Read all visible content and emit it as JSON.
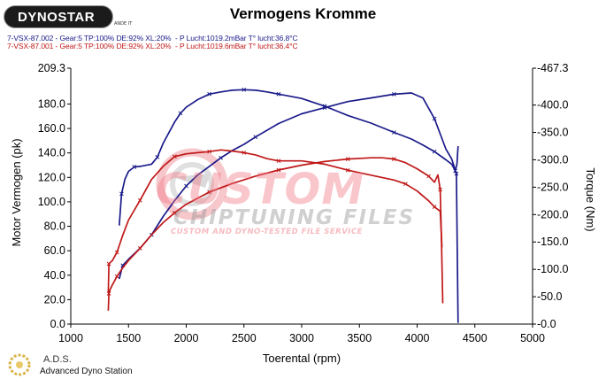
{
  "header": {
    "brand_text": "DYNOSTAR",
    "brand_tag": "ANDE IT",
    "title": "Vermogens Kromme",
    "runs": [
      "7-VSX-87.002 - Gear:5 TP:100% DE:92% XL:20%  - P Lucht:1019.2mBar T° lucht:36.8°C",
      "7-VSX-87.001 - Gear:5 TP:100% DE:92% XL:20%  - P Lucht:1019.6mBar T° lucht:36.4°C"
    ]
  },
  "watermark": {
    "line1": "CUSTOM",
    "line2": "CHIPTUNING FILES",
    "line3": "CUSTOM AND DYNO-TESTED FILE SERVICE"
  },
  "footer": {
    "title": "A.D.S.",
    "subtitle": "Advanced Dyno Station"
  },
  "colors": {
    "run1": "#1a1a8a",
    "run2": "#c01818",
    "axis": "#000000"
  },
  "chart_data": {
    "type": "line",
    "title": "Vermogens Kromme",
    "xlabel": "Toerental (rpm)",
    "ylabel": "Motor Vermogen (pk)",
    "y2label": "Torque (Nm)",
    "xlim": [
      1000,
      5000
    ],
    "ylim": [
      0,
      209.3
    ],
    "y2lim": [
      0,
      467.3
    ],
    "x_ticks": [
      "1000",
      "1500",
      "2000",
      "2500",
      "3000",
      "3500",
      "4000",
      "4500",
      "5000"
    ],
    "y_ticks": [
      "0.0",
      "20.0",
      "40.0",
      "60.0",
      "80.0",
      "100.0",
      "120.0",
      "140.0",
      "160.0",
      "180.0",
      "209.3"
    ],
    "y2_ticks": [
      "-0.0",
      "-50.0",
      "-100.0",
      "-150.0",
      "-200.0",
      "-250.0",
      "-300.0",
      "-350.0",
      "-400.0",
      "-467.3"
    ],
    "grid": false,
    "series": [
      {
        "run": "7-VSX-87.002",
        "quantity": "power",
        "axis": "left",
        "color": "#1a1a8a",
        "x": [
          1420,
          1450,
          1500,
          1600,
          1700,
          1800,
          1900,
          2000,
          2100,
          2200,
          2300,
          2400,
          2500,
          2600,
          2800,
          3000,
          3200,
          3400,
          3600,
          3800,
          3950,
          4050,
          4150,
          4250,
          4300,
          4340,
          4355
        ],
        "y": [
          37,
          48,
          53,
          62,
          73,
          88,
          101,
          113,
          122,
          129,
          136,
          142,
          147,
          153,
          164,
          172,
          177,
          182,
          185,
          188,
          189,
          185,
          168,
          143,
          135,
          123,
          1
        ]
      },
      {
        "run": "7-VSX-87.002",
        "quantity": "torque",
        "axis": "right",
        "color": "#1a1a8a",
        "x": [
          1420,
          1440,
          1470,
          1500,
          1550,
          1600,
          1700,
          1750,
          1800,
          1900,
          1950,
          2000,
          2100,
          2200,
          2300,
          2400,
          2500,
          2600,
          2700,
          2800,
          2900,
          3000,
          3200,
          3400,
          3600,
          3800,
          3950,
          4050,
          4150,
          4250,
          4300,
          4330,
          4345,
          4355
        ],
        "y": [
          180,
          238,
          265,
          279,
          287,
          288,
          292,
          305,
          330,
          369,
          385,
          396,
          410,
          420,
          424,
          427,
          428,
          427,
          424,
          420,
          416,
          412,
          398,
          381,
          367,
          350,
          338,
          327,
          315,
          300,
          292,
          280,
          292,
          325
        ]
      },
      {
        "run": "7-VSX-87.001",
        "quantity": "power",
        "axis": "left",
        "color": "#c01818",
        "x": [
          1325,
          1330,
          1340,
          1360,
          1400,
          1450,
          1500,
          1600,
          1700,
          1800,
          1900,
          2000,
          2100,
          2200,
          2400,
          2600,
          2800,
          3000,
          3200,
          3400,
          3600,
          3700,
          3800,
          3900,
          4000,
          4100,
          4150,
          4180,
          4200,
          4210,
          4222
        ],
        "y": [
          11,
          25,
          28,
          32,
          39,
          46,
          52,
          62,
          73,
          83,
          91,
          98,
          103,
          108,
          115,
          121,
          126,
          130,
          133,
          135,
          136,
          136,
          135,
          132,
          127,
          121,
          116,
          122,
          110,
          73,
          17
        ]
      },
      {
        "run": "7-VSX-87.001",
        "quantity": "torque",
        "axis": "right",
        "color": "#c01818",
        "x": [
          1325,
          1330,
          1345,
          1360,
          1400,
          1450,
          1500,
          1600,
          1700,
          1800,
          1900,
          2000,
          2100,
          2200,
          2300,
          2400,
          2500,
          2600,
          2700,
          2800,
          3000,
          3200,
          3400,
          3600,
          3800,
          3900,
          4000,
          4100,
          4150,
          4200,
          4215
        ],
        "y": [
          57,
          110,
          113,
          116,
          131,
          162,
          190,
          226,
          264,
          288,
          306,
          311,
          313,
          315,
          318,
          316,
          313,
          309,
          302,
          298,
          298,
          292,
          281,
          272,
          263,
          256,
          243,
          225,
          214,
          206,
          140
        ]
      }
    ]
  }
}
